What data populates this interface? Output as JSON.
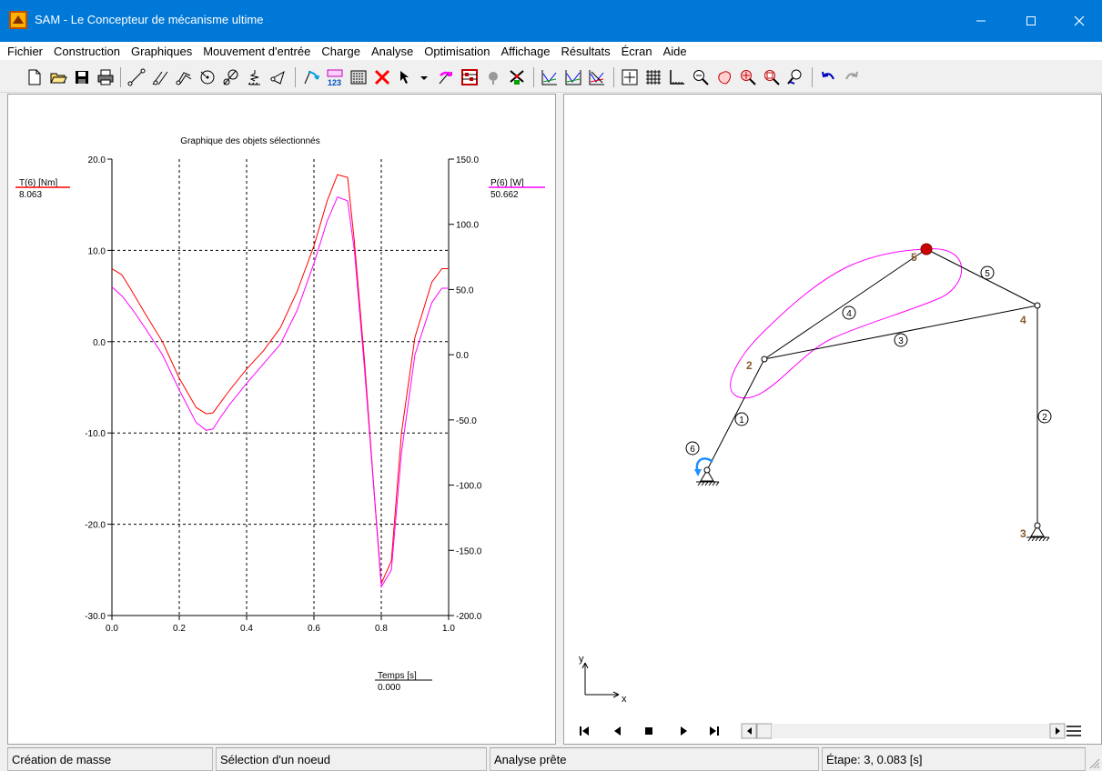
{
  "window": {
    "title": "SAM - Le Concepteur de mécanisme ultime",
    "accent_color": "#0078d7"
  },
  "menu": {
    "items": [
      "Fichier",
      "Construction",
      "Graphiques",
      "Mouvement d'entrée",
      "Charge",
      "Analyse",
      "Optimisation",
      "Affichage",
      "Résultats",
      "Écran",
      "Aide"
    ]
  },
  "toolbar": {
    "icons": [
      "new-file-icon",
      "open-folder-icon",
      "save-icon",
      "print-icon",
      "line-icon",
      "slider-icon",
      "rope-icon",
      "pulley-icon",
      "gear-icon",
      "spring-icon",
      "link-icon",
      "motion-arrow-icon",
      "numbering-icon",
      "calculator-icon",
      "delete-icon",
      "select-arrow-icon",
      "dropdown-icon",
      "torque-icon",
      "abacus-icon",
      "mass-icon",
      "windmill-icon",
      "graph-1-icon",
      "graph-2-icon",
      "graph-3-icon",
      "crosshair-icon",
      "grid-icon",
      "axis-icon",
      "zoom-out-icon",
      "pan-hand-icon",
      "zoom-extent-icon",
      "zoom-window-icon",
      "zoom-dynamic-icon",
      "undo-icon",
      "redo-icon"
    ]
  },
  "chart": {
    "title": "Graphique des objets sélectionnés",
    "left_axis_label": "T(6) [Nm]",
    "left_axis_value": "8.063",
    "right_axis_label": "P(6) [W]",
    "right_axis_value": "50.662",
    "x_axis_label": "Temps [s]",
    "x_axis_value": "0.000",
    "left_ticks": [
      "20.0",
      "10.0",
      "0.0",
      "-10.0",
      "-20.0",
      "-30.0"
    ],
    "right_ticks": [
      "150.0",
      "100.0",
      "50.0",
      "0.0",
      "-50.0",
      "-100.0",
      "-150.0",
      "-200.0"
    ],
    "x_ticks": [
      "0.0",
      "0.2",
      "0.4",
      "0.6",
      "0.8",
      "1.0"
    ],
    "colors": {
      "torque": "#ff0000",
      "power": "#ff00ff"
    }
  },
  "chart_data": {
    "type": "line",
    "title": "Graphique des objets sélectionnés",
    "xlabel": "Temps [s]",
    "ylabel": "T(6) [Nm]",
    "y2label": "P(6) [W]",
    "xlim": [
      0,
      1
    ],
    "ylim": [
      -30,
      20
    ],
    "y2lim": [
      -200,
      150
    ],
    "grid": true,
    "series": [
      {
        "name": "T(6) [Nm]",
        "axis": "left",
        "color": "#ff0000",
        "x": [
          0,
          0.03,
          0.06,
          0.1,
          0.15,
          0.2,
          0.25,
          0.28,
          0.3,
          0.32,
          0.35,
          0.4,
          0.45,
          0.5,
          0.55,
          0.6,
          0.64,
          0.67,
          0.7,
          0.72,
          0.75,
          0.78,
          0.8,
          0.83,
          0.86,
          0.9,
          0.95,
          0.98,
          1.0
        ],
        "y": [
          8.0,
          7.3,
          5.5,
          3.0,
          0.0,
          -4.0,
          -7.2,
          -7.9,
          -7.8,
          -6.8,
          -5.3,
          -3.0,
          -1.0,
          1.5,
          5.5,
          10.5,
          15.5,
          18.3,
          18.0,
          11.0,
          -2.0,
          -17.0,
          -26.5,
          -24.0,
          -10.0,
          0.5,
          6.5,
          8.0,
          8.0
        ]
      },
      {
        "name": "P(6) [W]",
        "axis": "right",
        "color": "#ff00ff",
        "x": [
          0,
          0.03,
          0.06,
          0.1,
          0.15,
          0.2,
          0.25,
          0.28,
          0.3,
          0.32,
          0.35,
          0.4,
          0.45,
          0.5,
          0.55,
          0.6,
          0.64,
          0.67,
          0.7,
          0.72,
          0.75,
          0.78,
          0.8,
          0.83,
          0.86,
          0.9,
          0.95,
          0.98,
          1.0
        ],
        "y": [
          52,
          45,
          35,
          20,
          0,
          -27,
          -52,
          -58,
          -57,
          -49,
          -38,
          -22,
          -7,
          8,
          34,
          70,
          103,
          121,
          118,
          80,
          -10,
          -110,
          -178,
          -165,
          -75,
          0,
          40,
          51,
          51
        ]
      }
    ]
  },
  "mechanism": {
    "node_labels": [
      "2",
      "3",
      "4",
      "5"
    ],
    "element_labels": [
      "1",
      "2",
      "3",
      "4",
      "5",
      "6"
    ],
    "axis_x": "x",
    "axis_y": "y"
  },
  "status": {
    "cell1": "Création de masse",
    "cell2": "Sélection d'un noeud",
    "cell3": "Analyse prête",
    "cell4": "Étape: 3,   0.083 [s]"
  }
}
